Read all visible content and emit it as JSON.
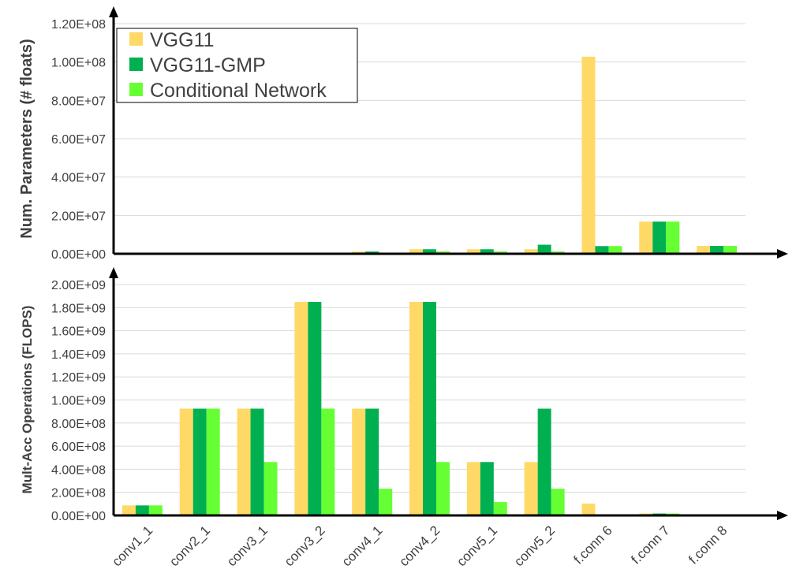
{
  "chart_data": [
    {
      "type": "bar",
      "ylabel": "Num. Parameters (# floats)",
      "ylim": [
        0,
        120000000
      ],
      "yticks": [
        {
          "value": 0,
          "label": "0.00E+00"
        },
        {
          "value": 20000000,
          "label": "2.00E+07"
        },
        {
          "value": 40000000,
          "label": "4.00E+07"
        },
        {
          "value": 60000000,
          "label": "6.00E+07"
        },
        {
          "value": 80000000,
          "label": "8.00E+07"
        },
        {
          "value": 100000000,
          "label": "1.00E+08"
        },
        {
          "value": 120000000,
          "label": "1.20E+08"
        }
      ],
      "grid": true,
      "legend": "top-left",
      "categories": [
        "conv1_1",
        "conv2_1",
        "conv3_1",
        "conv3_2",
        "conv4_1",
        "conv4_2",
        "conv5_1",
        "conv5_2",
        "f.conn 6",
        "f.conn 7",
        "f.conn 8"
      ],
      "series": [
        {
          "name": "VGG11",
          "color": "#ffd966",
          "values": [
            1792,
            73856,
            295168,
            590080,
            1180160,
            2359808,
            2359808,
            2359808,
            102764544,
            16781312,
            4097000
          ]
        },
        {
          "name": "VGG11-GMP",
          "color": "#00b050",
          "values": [
            1792,
            73856,
            295168,
            590080,
            1180160,
            2359808,
            2359808,
            4719616,
            4000000,
            16781312,
            4097000
          ]
        },
        {
          "name": "Conditional Network",
          "color": "#66ff33",
          "values": [
            1792,
            73856,
            147584,
            295040,
            590080,
            1179904,
            1179904,
            1179904,
            4000000,
            16781312,
            4097000
          ]
        }
      ]
    },
    {
      "type": "bar",
      "ylabel": "Mult-Acc Operations (FLOPS)",
      "ylim": [
        0,
        2000000000
      ],
      "yticks": [
        {
          "value": 0,
          "label": "0.00E+00"
        },
        {
          "value": 200000000,
          "label": "2.00E+08"
        },
        {
          "value": 400000000,
          "label": "4.00E+08"
        },
        {
          "value": 600000000,
          "label": "6.00E+08"
        },
        {
          "value": 800000000,
          "label": "8.00E+08"
        },
        {
          "value": 1000000000,
          "label": "1.00E+09"
        },
        {
          "value": 1200000000,
          "label": "1.20E+09"
        },
        {
          "value": 1400000000,
          "label": "1.40E+09"
        },
        {
          "value": 1600000000,
          "label": "1.60E+09"
        },
        {
          "value": 1800000000,
          "label": "1.80E+09"
        },
        {
          "value": 2000000000,
          "label": "2.00E+09"
        }
      ],
      "grid": true,
      "categories": [
        "conv1_1",
        "conv2_1",
        "conv3_1",
        "conv3_2",
        "conv4_1",
        "conv4_2",
        "conv5_1",
        "conv5_2",
        "f.conn 6",
        "f.conn 7",
        "f.conn 8"
      ],
      "series": [
        {
          "name": "VGG11",
          "color": "#ffd966",
          "values": [
            86704128,
            924844032,
            924844032,
            1849688064,
            924844032,
            1849688064,
            462422016,
            462422016,
            102760448,
            16777216,
            4096000
          ]
        },
        {
          "name": "VGG11-GMP",
          "color": "#00b050",
          "values": [
            86704128,
            924844032,
            924844032,
            1849688064,
            924844032,
            1849688064,
            462422016,
            924844032,
            4000000,
            16777216,
            4096000
          ]
        },
        {
          "name": "Conditional Network",
          "color": "#66ff33",
          "values": [
            86704128,
            924844032,
            462422016,
            924844032,
            231211008,
            462422016,
            115605504,
            231211008,
            4000000,
            16777216,
            4096000
          ]
        }
      ]
    }
  ]
}
